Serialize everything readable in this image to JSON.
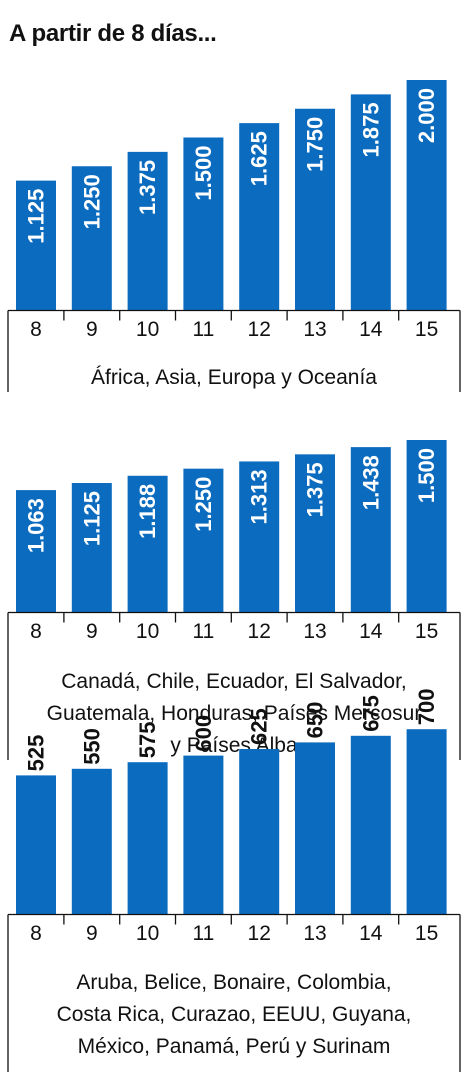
{
  "title": "A partir de 8 días...",
  "chart_data": [
    {
      "type": "bar",
      "categories": [
        "8",
        "9",
        "10",
        "11",
        "12",
        "13",
        "14",
        "15"
      ],
      "values": [
        1125,
        1250,
        1375,
        1500,
        1625,
        1750,
        1875,
        2000
      ],
      "value_labels": [
        "1.125",
        "1.250",
        "1.375",
        "1.500",
        "1.625",
        "1.750",
        "1.875",
        "2.000"
      ],
      "ylim": [
        0,
        2000
      ],
      "region_label": "África, Asia, Europa y Oceanía",
      "label_position": "inside",
      "color": "#0b6bbf"
    },
    {
      "type": "bar",
      "categories": [
        "8",
        "9",
        "10",
        "11",
        "12",
        "13",
        "14",
        "15"
      ],
      "values": [
        1063,
        1125,
        1188,
        1250,
        1313,
        1375,
        1438,
        1500
      ],
      "value_labels": [
        "1.063",
        "1.125",
        "1.188",
        "1.250",
        "1.313",
        "1.375",
        "1.438",
        "1.500"
      ],
      "ylim": [
        0,
        1500
      ],
      "region_label": "Canadá, Chile, Ecuador, El Salvador,\nGuatemala,  Honduras, Países Mercosur\ny Países Alba",
      "label_position": "inside",
      "color": "#0b6bbf"
    },
    {
      "type": "bar",
      "categories": [
        "8",
        "9",
        "10",
        "11",
        "12",
        "13",
        "14",
        "15"
      ],
      "values": [
        525,
        550,
        575,
        600,
        625,
        650,
        675,
        700
      ],
      "value_labels": [
        "525",
        "550",
        "575",
        "600",
        "625",
        "650",
        "675",
        "700"
      ],
      "ylim": [
        0,
        2000
      ],
      "region_label": "Aruba, Belice, Bonaire, Colombia,\nCosta Rica, Curazao, EEUU, Guyana,\nMéxico, Panamá, Perú y Surinam",
      "label_position": "above",
      "color": "#0b6bbf"
    }
  ]
}
